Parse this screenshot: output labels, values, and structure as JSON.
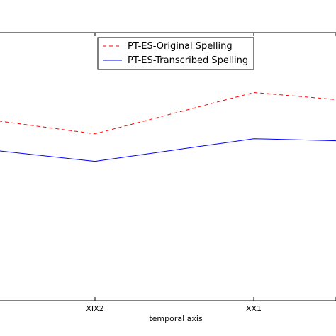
{
  "chart_data": {
    "type": "line",
    "xlabel": "temporal axis",
    "ylabel": "",
    "title": "",
    "categories": [
      "",
      "XIX2",
      "XX1",
      ""
    ],
    "series": [
      {
        "name": "PT-ES-Original Spelling",
        "values": [
          0.42,
          0.365,
          0.542,
          0.512
        ],
        "color": "#ff0000",
        "style": "dashed"
      },
      {
        "name": "PT-ES-Transcribed Spelling",
        "values": [
          0.292,
          0.247,
          0.344,
          0.335
        ],
        "color": "#0000ff",
        "style": "solid"
      }
    ],
    "ylim": [
      -0.35,
      0.799
    ],
    "legend_position": "top-center",
    "grid": false
  }
}
